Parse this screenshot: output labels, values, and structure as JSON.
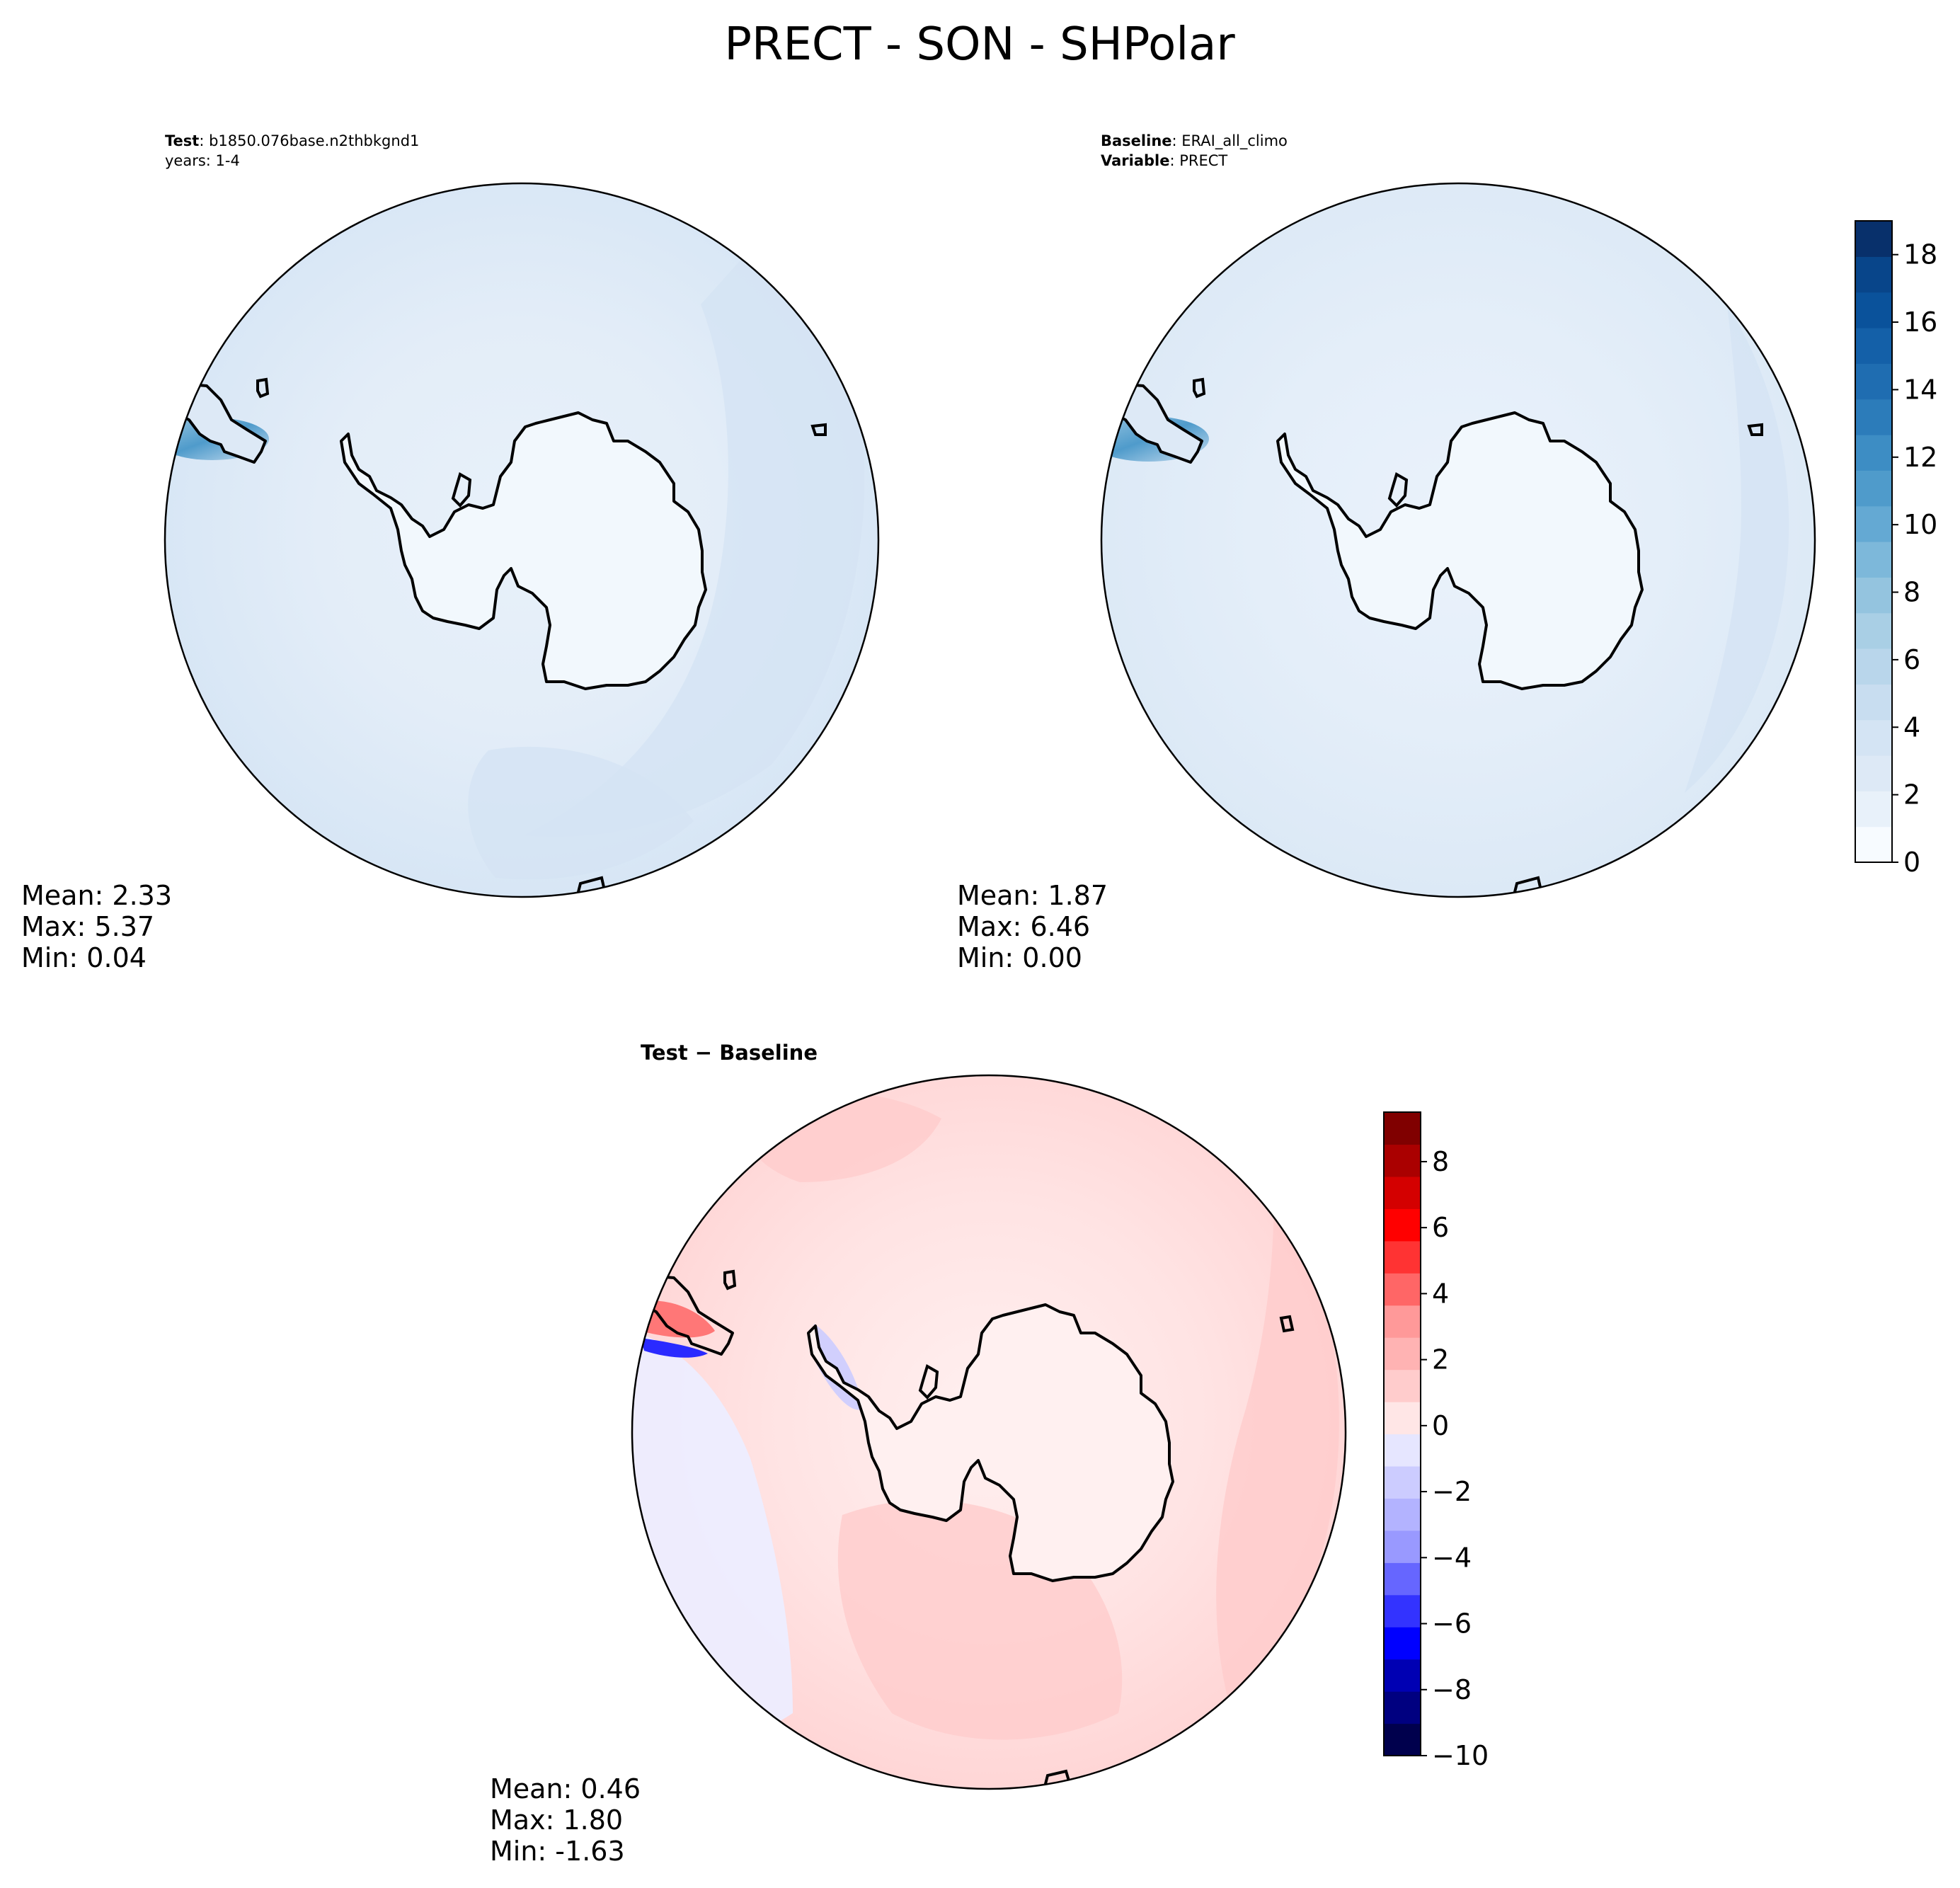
{
  "figure": {
    "title": "PRECT - SON - SHPolar"
  },
  "colors": {
    "land_fill": "#f2f8fd",
    "coast": "#000000",
    "blues": [
      "#f7fbff",
      "#e8f1fa",
      "#dde9f6",
      "#d4e4f4",
      "#c8ddf0",
      "#b9d6eb",
      "#a9cfe5",
      "#94c4df",
      "#7db8da",
      "#64a9d3",
      "#4f9bcb",
      "#3d8dc4",
      "#2c7cba",
      "#1f6db1",
      "#1460a8",
      "#0a529b",
      "#08458a",
      "#08306b"
    ],
    "bwr": [
      "#00004d",
      "#000080",
      "#0000b3",
      "#0000ff",
      "#3333ff",
      "#6666ff",
      "#9999ff",
      "#b3b3ff",
      "#ccccff",
      "#e6e6ff",
      "#ffe6e6",
      "#ffcccc",
      "#ffb3b3",
      "#ff9999",
      "#ff6666",
      "#ff3333",
      "#ff0000",
      "#d40000",
      "#aa0000",
      "#800000"
    ]
  },
  "chart_data": [
    {
      "type": "heatmap",
      "panel": "test",
      "header": [
        {
          "label": "Test",
          "value": ": b1850.076base.n2thbkgnd1"
        },
        {
          "label": "",
          "value": "years: 1-4"
        }
      ],
      "stats": [
        "Mean:  2.33",
        "Max:  5.37",
        "Min:  0.04"
      ],
      "colorbar": null
    },
    {
      "type": "heatmap",
      "panel": "baseline",
      "header": [
        {
          "label": "Baseline",
          "value": ": ERAI_all_climo"
        },
        {
          "label": "Variable",
          "value": ": PRECT"
        }
      ],
      "stats": [
        "Mean:  1.87",
        "Max:  6.46",
        "Min:  0.00"
      ],
      "colorbar": {
        "min": 0,
        "max": 19,
        "ticks": [
          0,
          2,
          4,
          6,
          8,
          10,
          12,
          14,
          16,
          18
        ],
        "tick_labels": [
          "0",
          "2",
          "4",
          "6",
          "8",
          "10",
          "12",
          "14",
          "16",
          "18"
        ]
      }
    },
    {
      "type": "heatmap",
      "panel": "difference",
      "title": "Test − Baseline",
      "stats": [
        "Mean:  0.46",
        "Max:  1.80",
        "Min: -1.63"
      ],
      "colorbar": {
        "min": -10,
        "max": 9.5,
        "ticks": [
          -10,
          -8,
          -6,
          -4,
          -2,
          0,
          2,
          4,
          6,
          8
        ],
        "tick_labels": [
          "−10",
          "−8",
          "−6",
          "−4",
          "−2",
          "0",
          "2",
          "4",
          "6",
          "8"
        ]
      }
    }
  ]
}
